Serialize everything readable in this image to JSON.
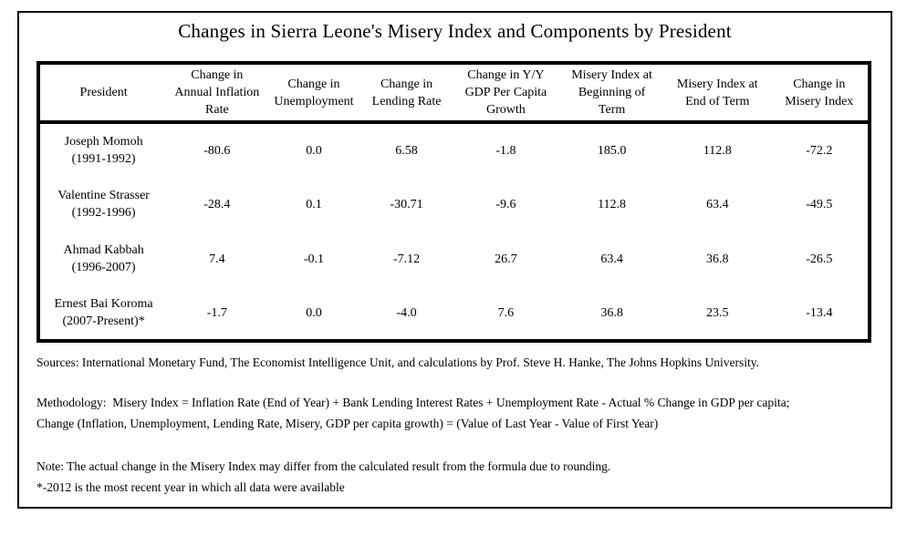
{
  "page": {
    "title": "Changes in Sierra Leone's Misery Index and Components by President"
  },
  "colors": {
    "background": "#ffffff",
    "border": "#000000",
    "text": "#000000"
  },
  "table": {
    "headers": [
      "President",
      "Change in Annual Inflation Rate",
      "Change in Unemployment",
      "Change in Lending Rate",
      "Change in Y/Y GDP Per Capita Growth",
      "Misery Index at Beginning of Term",
      "Misery Index at End of Term",
      "Change in Misery Index"
    ],
    "rows": [
      {
        "president": "Joseph Momoh",
        "term": "(1991-1992)",
        "inflation": "-80.6",
        "unemployment": "0.0",
        "lending": "6.58",
        "gdp": "-1.8",
        "misery_begin": "185.0",
        "misery_end": "112.8",
        "misery_change": "-72.2"
      },
      {
        "president": "Valentine Strasser",
        "term": "(1992-1996)",
        "inflation": "-28.4",
        "unemployment": "0.1",
        "lending": "-30.71",
        "gdp": "-9.6",
        "misery_begin": "112.8",
        "misery_end": "63.4",
        "misery_change": "-49.5"
      },
      {
        "president": "Ahmad Kabbah",
        "term": "(1996-2007)",
        "inflation": "7.4",
        "unemployment": "-0.1",
        "lending": "-7.12",
        "gdp": "26.7",
        "misery_begin": "63.4",
        "misery_end": "36.8",
        "misery_change": "-26.5"
      },
      {
        "president": "Ernest Bai Koroma",
        "term": "(2007-Present)*",
        "inflation": "-1.7",
        "unemployment": "0.0",
        "lending": "-4.0",
        "gdp": "7.6",
        "misery_begin": "36.8",
        "misery_end": "23.5",
        "misery_change": "-13.4"
      }
    ]
  },
  "footnotes": {
    "sources": "Sources: International Monetary Fund, The Economist Intelligence Unit, and calculations by Prof. Steve H. Hanke, The Johns Hopkins University.",
    "methodology_line1": "Methodology:  Misery Index = Inflation Rate (End of Year) + Bank Lending Interest Rates + Unemployment Rate - Actual % Change in GDP per capita;",
    "methodology_line2": "Change (Inflation, Unemployment, Lending Rate, Misery, GDP per capita growth) = (Value of Last Year - Value of First Year)",
    "note": "Note: The actual change in the Misery Index may differ from the calculated result from the formula due to rounding.",
    "asterisk": "*-2012 is the most recent year in which all data were available"
  },
  "chart_data": {
    "type": "table",
    "title": "Changes in Sierra Leone's Misery Index and Components by President",
    "columns": [
      "President",
      "Change in Annual Inflation Rate",
      "Change in Unemployment",
      "Change in Lending Rate",
      "Change in Y/Y GDP Per Capita Growth",
      "Misery Index at Beginning of Term",
      "Misery Index at End of Term",
      "Change in Misery Index"
    ],
    "rows": [
      [
        "Joseph Momoh (1991-1992)",
        -80.6,
        0.0,
        6.58,
        -1.8,
        185.0,
        112.8,
        -72.2
      ],
      [
        "Valentine Strasser (1992-1996)",
        -28.4,
        0.1,
        -30.71,
        -9.6,
        112.8,
        63.4,
        -49.5
      ],
      [
        "Ahmad Kabbah (1996-2007)",
        7.4,
        -0.1,
        -7.12,
        26.7,
        63.4,
        36.8,
        -26.5
      ],
      [
        "Ernest Bai Koroma (2007-Present)*",
        -1.7,
        0.0,
        -4.0,
        7.6,
        36.8,
        23.5,
        -13.4
      ]
    ]
  }
}
